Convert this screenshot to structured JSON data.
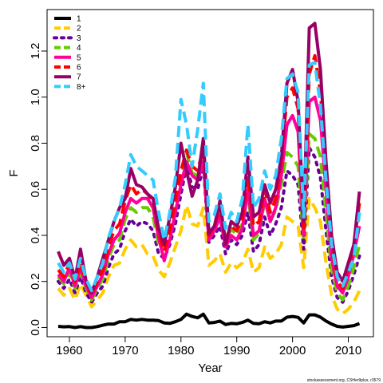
{
  "chart_data": {
    "type": "line",
    "xlabel": "Year",
    "ylabel": "F",
    "xlim": [
      1956,
      2014.5
    ],
    "ylim": [
      -0.04,
      1.38
    ],
    "xticks": [
      "1960",
      "1970",
      "1980",
      "1990",
      "2000",
      "2010"
    ],
    "yticks": [
      "0.0",
      "0.2",
      "0.4",
      "0.6",
      "0.8",
      "1.0",
      "1.2"
    ],
    "legend_position": "top-left",
    "footnote": "stockassessment.org, CSHer9plus, r3579",
    "x": [
      1958,
      1959,
      1960,
      1961,
      1962,
      1963,
      1964,
      1965,
      1966,
      1967,
      1968,
      1969,
      1970,
      1971,
      1972,
      1973,
      1974,
      1975,
      1976,
      1977,
      1978,
      1979,
      1980,
      1981,
      1982,
      1983,
      1984,
      1985,
      1986,
      1987,
      1988,
      1989,
      1990,
      1991,
      1992,
      1993,
      1994,
      1995,
      1996,
      1997,
      1998,
      1999,
      2000,
      2001,
      2002,
      2003,
      2004,
      2005,
      2006,
      2007,
      2008,
      2009,
      2010,
      2011,
      2012
    ],
    "series": [
      {
        "name": "1",
        "color": "#000000",
        "dash": "solid",
        "values": [
          0.005,
          0.003,
          0.004,
          0.0,
          0.004,
          0.0,
          0.0,
          0.004,
          0.01,
          0.015,
          0.015,
          0.025,
          0.025,
          0.035,
          0.032,
          0.035,
          0.032,
          0.032,
          0.03,
          0.02,
          0.018,
          0.025,
          0.035,
          0.058,
          0.048,
          0.042,
          0.058,
          0.02,
          0.022,
          0.028,
          0.013,
          0.018,
          0.016,
          0.022,
          0.032,
          0.018,
          0.016,
          0.025,
          0.02,
          0.028,
          0.028,
          0.045,
          0.048,
          0.044,
          0.02,
          0.055,
          0.055,
          0.045,
          0.028,
          0.015,
          0.005,
          0.002,
          0.005,
          0.008,
          0.017
        ]
      },
      {
        "name": "2",
        "color": "#FFCC00",
        "dash": "dashed",
        "values": [
          0.17,
          0.14,
          0.17,
          0.12,
          0.19,
          0.14,
          0.09,
          0.12,
          0.15,
          0.22,
          0.27,
          0.28,
          0.34,
          0.38,
          0.35,
          0.36,
          0.32,
          0.31,
          0.25,
          0.22,
          0.28,
          0.35,
          0.42,
          0.53,
          0.45,
          0.44,
          0.52,
          0.27,
          0.29,
          0.32,
          0.24,
          0.28,
          0.26,
          0.28,
          0.34,
          0.24,
          0.26,
          0.35,
          0.3,
          0.32,
          0.36,
          0.48,
          0.46,
          0.44,
          0.26,
          0.56,
          0.52,
          0.46,
          0.28,
          0.14,
          0.08,
          0.06,
          0.08,
          0.11,
          0.16
        ]
      },
      {
        "name": "3",
        "color": "#660099",
        "dash": "dotted",
        "values": [
          0.2,
          0.17,
          0.21,
          0.15,
          0.22,
          0.15,
          0.11,
          0.15,
          0.18,
          0.26,
          0.32,
          0.34,
          0.42,
          0.47,
          0.44,
          0.46,
          0.45,
          0.42,
          0.32,
          0.3,
          0.36,
          0.45,
          0.58,
          0.7,
          0.61,
          0.6,
          0.7,
          0.37,
          0.4,
          0.44,
          0.32,
          0.38,
          0.36,
          0.4,
          0.5,
          0.33,
          0.36,
          0.48,
          0.4,
          0.45,
          0.52,
          0.68,
          0.66,
          0.62,
          0.34,
          0.78,
          0.74,
          0.65,
          0.42,
          0.22,
          0.13,
          0.11,
          0.16,
          0.23,
          0.31
        ]
      },
      {
        "name": "4",
        "color": "#66CC00",
        "dash": "dashed",
        "values": [
          0.22,
          0.19,
          0.24,
          0.17,
          0.24,
          0.17,
          0.12,
          0.17,
          0.21,
          0.3,
          0.36,
          0.38,
          0.47,
          0.52,
          0.5,
          0.52,
          0.52,
          0.48,
          0.36,
          0.34,
          0.4,
          0.51,
          0.65,
          0.76,
          0.67,
          0.66,
          0.76,
          0.41,
          0.44,
          0.5,
          0.36,
          0.43,
          0.4,
          0.45,
          0.58,
          0.38,
          0.41,
          0.55,
          0.46,
          0.51,
          0.62,
          0.76,
          0.74,
          0.7,
          0.38,
          0.84,
          0.82,
          0.74,
          0.5,
          0.25,
          0.15,
          0.12,
          0.18,
          0.26,
          0.36
        ]
      },
      {
        "name": "5",
        "color": "#FF0099",
        "dash": "solid",
        "values": [
          0.23,
          0.2,
          0.26,
          0.18,
          0.26,
          0.18,
          0.13,
          0.18,
          0.23,
          0.32,
          0.38,
          0.41,
          0.5,
          0.56,
          0.54,
          0.56,
          0.56,
          0.52,
          0.39,
          0.29,
          0.38,
          0.5,
          0.62,
          0.72,
          0.66,
          0.64,
          0.72,
          0.38,
          0.42,
          0.48,
          0.35,
          0.4,
          0.38,
          0.43,
          0.6,
          0.4,
          0.42,
          0.56,
          0.46,
          0.52,
          0.66,
          0.88,
          0.92,
          0.85,
          0.4,
          0.98,
          1.0,
          0.9,
          0.6,
          0.3,
          0.18,
          0.15,
          0.22,
          0.32,
          0.44
        ]
      },
      {
        "name": "6",
        "color": "#FF0000",
        "dash": "dashed",
        "values": [
          0.25,
          0.22,
          0.28,
          0.2,
          0.28,
          0.2,
          0.14,
          0.2,
          0.25,
          0.35,
          0.42,
          0.45,
          0.55,
          0.62,
          0.58,
          0.6,
          0.58,
          0.55,
          0.41,
          0.33,
          0.42,
          0.55,
          0.68,
          0.77,
          0.7,
          0.68,
          0.78,
          0.4,
          0.44,
          0.52,
          0.38,
          0.44,
          0.42,
          0.47,
          0.66,
          0.44,
          0.46,
          0.6,
          0.5,
          0.56,
          0.72,
          1.0,
          1.04,
          0.95,
          0.42,
          1.1,
          1.18,
          1.02,
          0.7,
          0.35,
          0.2,
          0.17,
          0.26,
          0.36,
          0.54
        ]
      },
      {
        "name": "7",
        "color": "#990066",
        "dash": "solid",
        "values": [
          0.33,
          0.27,
          0.3,
          0.21,
          0.34,
          0.2,
          0.15,
          0.22,
          0.3,
          0.38,
          0.46,
          0.52,
          0.56,
          0.69,
          0.62,
          0.61,
          0.58,
          0.56,
          0.43,
          0.36,
          0.48,
          0.61,
          0.8,
          0.68,
          0.57,
          0.64,
          0.82,
          0.41,
          0.44,
          0.55,
          0.36,
          0.46,
          0.44,
          0.5,
          0.74,
          0.48,
          0.5,
          0.62,
          0.54,
          0.6,
          0.74,
          1.06,
          1.12,
          0.98,
          0.46,
          1.3,
          1.32,
          1.12,
          0.72,
          0.4,
          0.24,
          0.2,
          0.28,
          0.36,
          0.59
        ]
      },
      {
        "name": "8+",
        "color": "#33CCFF",
        "dash": "dashed",
        "values": [
          0.28,
          0.24,
          0.28,
          0.21,
          0.3,
          0.21,
          0.16,
          0.22,
          0.28,
          0.39,
          0.46,
          0.52,
          0.62,
          0.75,
          0.7,
          0.68,
          0.66,
          0.64,
          0.5,
          0.38,
          0.5,
          0.65,
          0.99,
          0.88,
          0.7,
          0.86,
          1.06,
          0.46,
          0.49,
          0.58,
          0.43,
          0.5,
          0.46,
          0.56,
          0.88,
          0.52,
          0.56,
          0.68,
          0.6,
          0.66,
          0.82,
          1.08,
          1.1,
          1.02,
          0.48,
          1.14,
          1.15,
          0.96,
          0.64,
          0.36,
          0.22,
          0.18,
          0.24,
          0.3,
          0.5
        ]
      }
    ]
  }
}
